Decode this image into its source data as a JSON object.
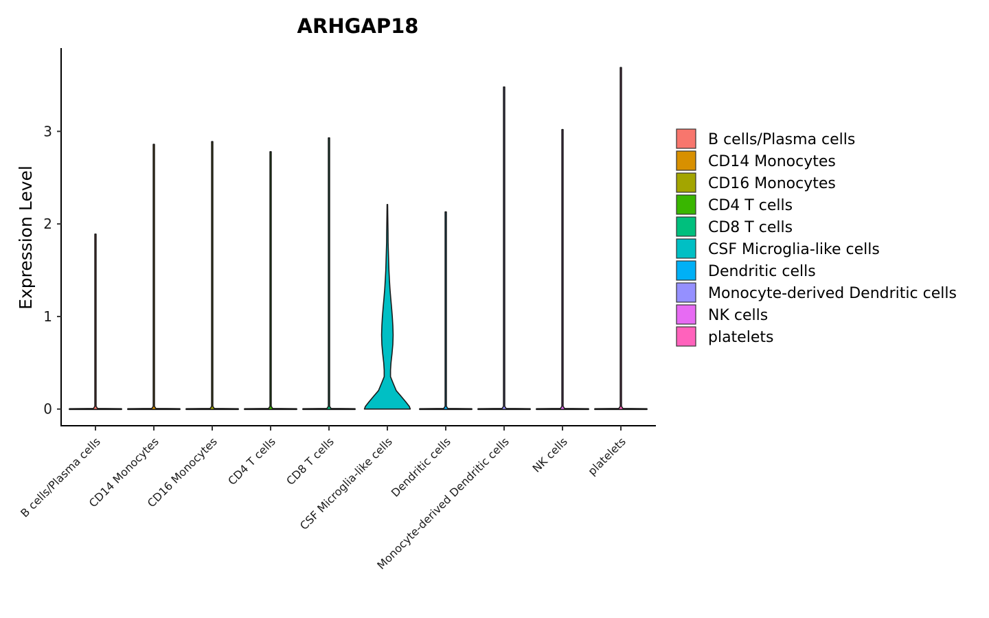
{
  "chart_data": {
    "type": "violin",
    "title": "ARHGAP18",
    "xlabel": "",
    "ylabel": "Expression Level",
    "ylim": [
      -0.18,
      3.9
    ],
    "yticks": [
      0,
      1,
      2,
      3
    ],
    "ytick_labels": [
      "0",
      "1",
      "2",
      "3"
    ],
    "grid": false,
    "legend_position": "right",
    "categories": [
      "B cells/Plasma cells",
      "CD14 Monocytes",
      "CD16 Monocytes",
      "CD4 T cells",
      "CD8 T cells",
      "CSF Microglia-like cells",
      "Dendritic cells",
      "Monocyte-derived Dendritic cells",
      "NK cells",
      "platelets"
    ],
    "colors": [
      "#F8766D",
      "#D89000",
      "#A3A500",
      "#39B600",
      "#00BF7D",
      "#00BFC4",
      "#00B0F6",
      "#9590FF",
      "#E76BF3",
      "#FF62BC"
    ],
    "max_values": [
      1.89,
      2.86,
      2.89,
      2.78,
      2.93,
      2.21,
      2.13,
      3.48,
      3.02,
      3.69
    ],
    "csf_density_profile": {
      "y": [
        0,
        0.03,
        0.08,
        0.14,
        0.2,
        0.28,
        0.35,
        0.42,
        0.5,
        0.6,
        0.7,
        0.8,
        0.9,
        1.0,
        1.1,
        1.2,
        1.3,
        1.4,
        1.5,
        1.6,
        1.7,
        1.8,
        1.9,
        2.0,
        2.1,
        2.21
      ],
      "half_width_fraction": [
        0.88,
        0.84,
        0.7,
        0.52,
        0.34,
        0.22,
        0.12,
        0.12,
        0.14,
        0.18,
        0.21,
        0.22,
        0.21,
        0.19,
        0.16,
        0.13,
        0.1,
        0.08,
        0.06,
        0.05,
        0.04,
        0.03,
        0.025,
        0.02,
        0.015,
        0.01
      ]
    }
  }
}
